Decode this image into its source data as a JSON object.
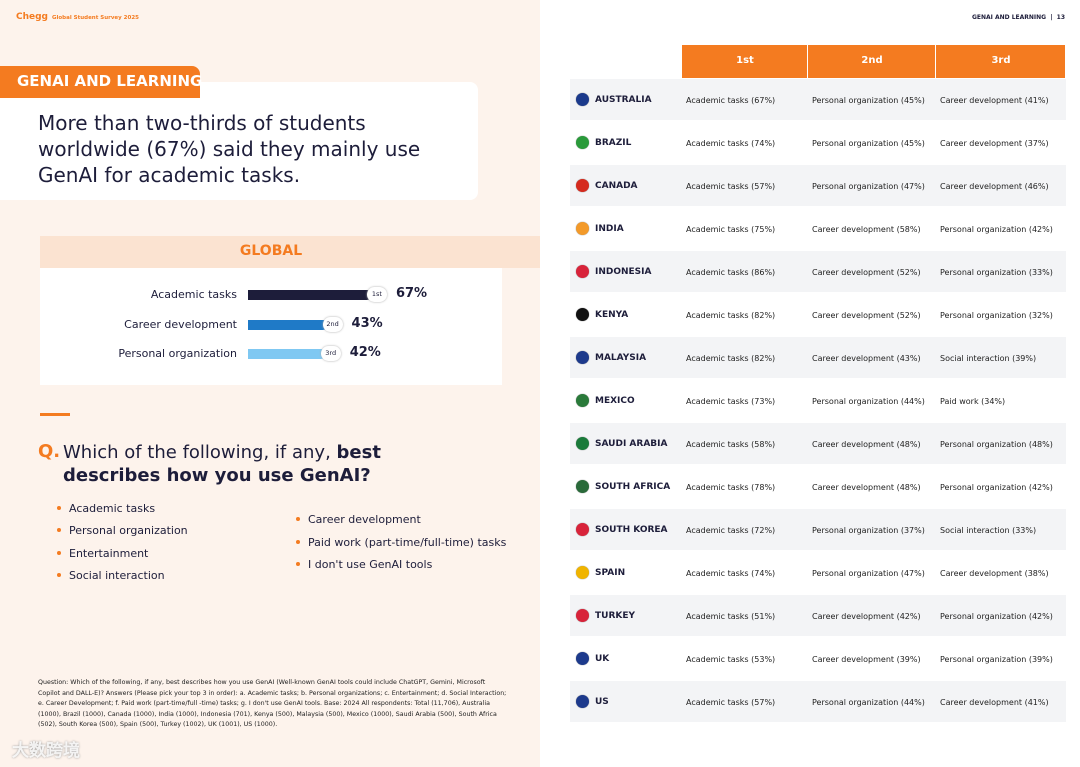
{
  "header": {
    "brand": "Chegg",
    "report": "Global Student Survey 2025",
    "section": "GENAI AND LEARNING",
    "page": "13"
  },
  "tag": "GENAI AND LEARNING",
  "headline": "More than two-thirds of students worldwide (67%) said they mainly use GenAI for academic tasks.",
  "chart_data": {
    "type": "bar",
    "orientation": "horizontal",
    "title": "GLOBAL",
    "categories": [
      "Academic tasks",
      "Career development",
      "Personal organization"
    ],
    "values": [
      67,
      43,
      42
    ],
    "value_labels": [
      "67%",
      "43%",
      "42%"
    ],
    "ranks": [
      "1st",
      "2nd",
      "3rd"
    ],
    "colors": [
      "#1d1d3a",
      "#1f7ac7",
      "#7fc8f2"
    ]
  },
  "question": {
    "prefix": "Q.",
    "plain": "Which of the following, if any,",
    "bold": "best describes how you use GenAI?",
    "options_left": [
      "Academic tasks",
      "Personal organization",
      "Entertainment",
      "Social interaction"
    ],
    "options_right": [
      "Career development",
      "Paid work (part-time/full-time) tasks",
      "I don't use GenAI tools"
    ]
  },
  "footnote": "Question: Which of the following, if any, best describes how you use GenAI (Well-known GenAI tools could include ChatGPT, Gemini, Microsoft Copilot and DALL-E)? Answers (Please pick your top 3 in order): a. Academic tasks; b. Personal organizations; c. Entertainment; d. Social Interaction; e. Career Development; f. Paid work (part-time/full -time) tasks; g. I don't use GenAI tools. Base: 2024 All respondents: Total (11,706), Australia (1000), Brazil (1000), Canada (1000), India (1000), Indonesia (701), Kenya (500), Malaysia (500), Mexico (1000), Saudi Arabia (500), South Africa (502), South Korea (500), Spain (500), Turkey (1002), UK (1001), US (1000).",
  "watermark": "大数跨境",
  "table": {
    "columns": [
      "1st",
      "2nd",
      "3rd"
    ],
    "rows": [
      [
        "AUSTRALIA",
        "Academic tasks (67%)",
        "Personal organization (45%)",
        "Career development (41%)"
      ],
      [
        "BRAZIL",
        "Academic tasks (74%)",
        "Personal organization (45%)",
        "Career development (37%)"
      ],
      [
        "CANADA",
        "Academic tasks (57%)",
        "Personal organization (47%)",
        "Career development (46%)"
      ],
      [
        "INDIA",
        "Academic tasks (75%)",
        "Career development (58%)",
        "Personal organization (42%)"
      ],
      [
        "INDONESIA",
        "Academic tasks (86%)",
        "Career development (52%)",
        "Personal organization (33%)"
      ],
      [
        "KENYA",
        "Academic tasks (82%)",
        "Career development (52%)",
        "Personal organization (32%)"
      ],
      [
        "MALAYSIA",
        "Academic tasks (82%)",
        "Career development (43%)",
        "Social interaction (39%)"
      ],
      [
        "MEXICO",
        "Academic tasks (73%)",
        "Personal organization (44%)",
        "Paid work (34%)"
      ],
      [
        "SAUDI ARABIA",
        "Academic tasks (58%)",
        "Career development (48%)",
        "Personal organization (48%)"
      ],
      [
        "SOUTH AFRICA",
        "Academic tasks (78%)",
        "Career development (48%)",
        "Personal organization (42%)"
      ],
      [
        "SOUTH KOREA",
        "Academic tasks (72%)",
        "Personal organization (37%)",
        "Social interaction (33%)"
      ],
      [
        "SPAIN",
        "Academic tasks (74%)",
        "Personal organization (47%)",
        "Career development (38%)"
      ],
      [
        "TURKEY",
        "Academic tasks (51%)",
        "Career development (42%)",
        "Personal organization (42%)"
      ],
      [
        "UK",
        "Academic tasks (53%)",
        "Career development (39%)",
        "Personal organization (39%)"
      ],
      [
        "US",
        "Academic tasks (57%)",
        "Personal organization (44%)",
        "Career development (41%)"
      ]
    ]
  }
}
